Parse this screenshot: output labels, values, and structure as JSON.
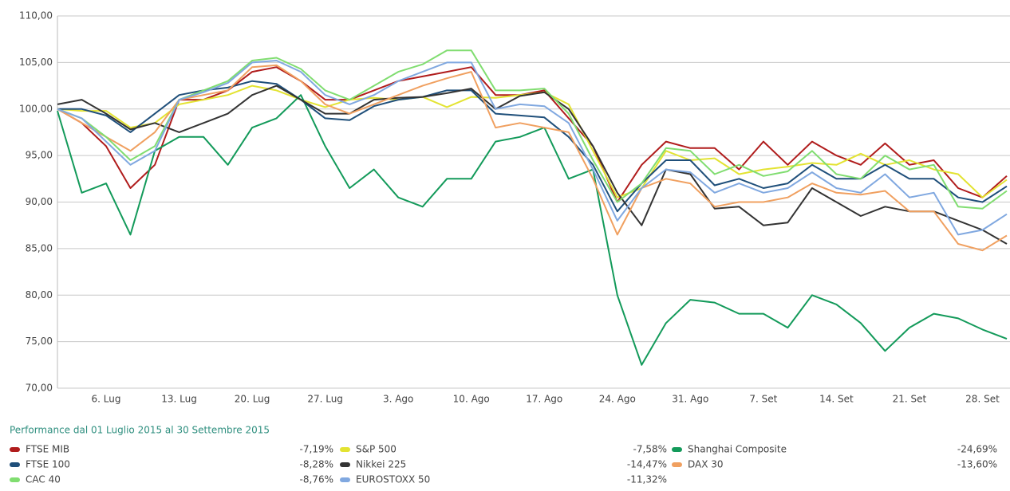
{
  "chart_data": {
    "type": "line",
    "categories": [
      null,
      null,
      "6. Lug",
      null,
      null,
      "13. Lug",
      null,
      null,
      "20. Lug",
      null,
      null,
      "27. Lug",
      null,
      null,
      "3. Ago",
      null,
      null,
      "10. Ago",
      null,
      null,
      "17. Ago",
      null,
      null,
      "24. Ago",
      null,
      null,
      "31. Ago",
      null,
      null,
      "7. Set",
      null,
      null,
      "14. Set",
      null,
      null,
      "21. Set",
      null,
      null,
      "28. Set",
      null
    ],
    "ylim": [
      70,
      110
    ],
    "yticks": [
      {
        "value": 70,
        "label": "70,00"
      },
      {
        "value": 75,
        "label": "75,00"
      },
      {
        "value": 80,
        "label": "80,00"
      },
      {
        "value": 85,
        "label": "85,00"
      },
      {
        "value": 90,
        "label": "90,00"
      },
      {
        "value": 95,
        "label": "95,00"
      },
      {
        "value": 100,
        "label": "100,00"
      },
      {
        "value": 105,
        "label": "105,00"
      },
      {
        "value": 110,
        "label": "110,00"
      }
    ],
    "grid": true,
    "legend_title": "Performance dal 01 Luglio 2015 al 30 Settembre 2015",
    "series": [
      {
        "name": "FTSE MIB",
        "performance": "-7,19%",
        "color": "#b01c1c",
        "values": [
          100,
          98.5,
          96,
          91.5,
          94,
          101,
          101,
          102,
          104,
          104.5,
          103,
          101,
          101,
          102,
          103,
          103.5,
          104,
          104.5,
          101.5,
          101.5,
          102,
          99,
          96,
          90,
          94,
          96.5,
          95.8,
          95.8,
          93.5,
          96.5,
          94,
          96.5,
          95,
          94,
          96.3,
          94,
          94.5,
          91.5,
          90.5,
          92.8
        ]
      },
      {
        "name": "S&P 500",
        "performance": "-7,58%",
        "color": "#e3e332",
        "values": [
          100,
          99.8,
          99.8,
          98,
          98.5,
          100.5,
          101,
          101.5,
          102.5,
          102,
          101,
          100.2,
          101,
          101.2,
          101,
          101.3,
          100.2,
          101.3,
          101.2,
          101.5,
          101.8,
          100.5,
          95.5,
          90.5,
          91.5,
          95.5,
          94.5,
          94.7,
          93,
          93.5,
          93.8,
          94.2,
          94,
          95.2,
          94,
          94.5,
          93.5,
          93,
          90.5,
          92.4
        ]
      },
      {
        "name": "Shanghai Composite",
        "performance": "-24,69%",
        "color": "#139a5a",
        "values": [
          99.8,
          91,
          92,
          86.5,
          95.5,
          97,
          97,
          94,
          98,
          99,
          101.5,
          96,
          91.5,
          93.5,
          90.5,
          89.5,
          92.5,
          92.5,
          96.5,
          97,
          98,
          92.5,
          93.5,
          80,
          72.5,
          77,
          79.5,
          79.2,
          78,
          78,
          76.5,
          80,
          79,
          77,
          74,
          76.5,
          78,
          77.5,
          76.3,
          75.3
        ]
      },
      {
        "name": "FTSE 100",
        "performance": "-8,28%",
        "color": "#1f4f7a",
        "values": [
          100,
          100,
          99.3,
          97.5,
          99.5,
          101.5,
          102,
          102.3,
          103,
          102.7,
          101,
          99,
          98.8,
          100.3,
          101,
          101.3,
          102,
          102,
          99.5,
          99.3,
          99.1,
          97,
          94,
          89,
          92,
          94.5,
          94.5,
          91.8,
          92.5,
          91.5,
          92,
          94,
          92.5,
          92.5,
          94,
          92.5,
          92.5,
          90.5,
          90,
          91.7
        ]
      },
      {
        "name": "Nikkei 225",
        "performance": "-14,47%",
        "color": "#333333",
        "values": [
          100.5,
          101,
          99.5,
          97.8,
          98.5,
          97.5,
          98.5,
          99.5,
          101.5,
          102.5,
          101,
          99.5,
          99.5,
          101,
          101.2,
          101.3,
          101.7,
          102.2,
          100,
          101.4,
          101.8,
          100,
          96,
          91,
          87.5,
          93.5,
          93,
          89.3,
          89.5,
          87.5,
          87.8,
          91.5,
          90,
          88.5,
          89.5,
          89,
          89,
          88,
          87,
          85.5
        ]
      },
      {
        "name": "DAX 30",
        "performance": "-13,60%",
        "color": "#f0a060",
        "values": [
          100,
          98.5,
          97,
          95.5,
          97.5,
          101,
          101.5,
          102,
          104.5,
          104.7,
          103,
          100.5,
          99.5,
          100.5,
          101.5,
          102.5,
          103.3,
          104,
          98,
          98.5,
          98,
          97.5,
          92.5,
          86.5,
          91.5,
          92.5,
          92,
          89.5,
          90,
          90,
          90.5,
          92,
          91,
          90.8,
          91.2,
          89,
          89,
          85.5,
          84.8,
          86.4
        ]
      },
      {
        "name": "CAC 40",
        "performance": "-8,76%",
        "color": "#80dd70",
        "values": [
          100,
          99,
          97,
          94.5,
          96,
          101,
          102,
          103,
          105.2,
          105.5,
          104.3,
          102,
          101,
          102.5,
          104,
          104.8,
          106.3,
          106.3,
          102,
          102,
          102.2,
          99.5,
          94.5,
          90,
          92,
          95.8,
          95.5,
          93,
          94,
          92.8,
          93.3,
          95.5,
          93,
          92.5,
          95,
          93.5,
          94,
          89.5,
          89.3,
          91.2
        ]
      },
      {
        "name": "EUROSTOXX 50",
        "performance": "-11,32%",
        "color": "#80a8e0",
        "values": [
          100,
          99,
          96.5,
          94,
          95.5,
          101,
          101.8,
          102.8,
          105,
          105.2,
          104,
          101.5,
          100.5,
          101.5,
          103,
          104,
          105,
          105,
          100,
          100.5,
          100.3,
          98.5,
          93.5,
          88,
          91.5,
          93.5,
          93.2,
          91,
          92,
          91,
          91.5,
          93.2,
          91.5,
          91,
          93,
          90.5,
          91,
          86.5,
          87,
          88.7
        ]
      }
    ]
  }
}
